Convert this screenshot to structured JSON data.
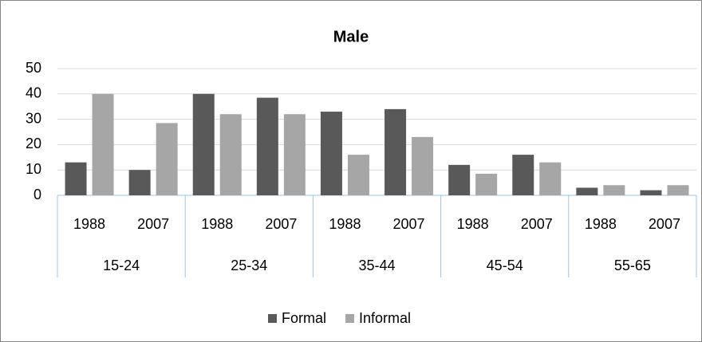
{
  "chart_data": {
    "type": "bar",
    "title": "Male",
    "groups": [
      {
        "name": "15-24",
        "categories": [
          "1988",
          "2007"
        ]
      },
      {
        "name": "25-34",
        "categories": [
          "1988",
          "2007"
        ]
      },
      {
        "name": "35-44",
        "categories": [
          "1988",
          "2007"
        ]
      },
      {
        "name": "45-54",
        "categories": [
          "1988",
          "2007"
        ]
      },
      {
        "name": "55-65",
        "categories": [
          "1988",
          "2007"
        ]
      }
    ],
    "series": [
      {
        "name": "Formal",
        "color": "#595959",
        "values": [
          13,
          10,
          40,
          38.5,
          33,
          34,
          12,
          16,
          3,
          2
        ]
      },
      {
        "name": "Informal",
        "color": "#a6a6a6",
        "values": [
          40,
          28.5,
          32,
          32,
          16,
          23,
          8.5,
          13,
          4,
          4
        ]
      }
    ],
    "ylim": [
      0,
      50
    ],
    "yticks": [
      0,
      10,
      20,
      30,
      40,
      50
    ],
    "grid": true,
    "legend": "bottom"
  }
}
